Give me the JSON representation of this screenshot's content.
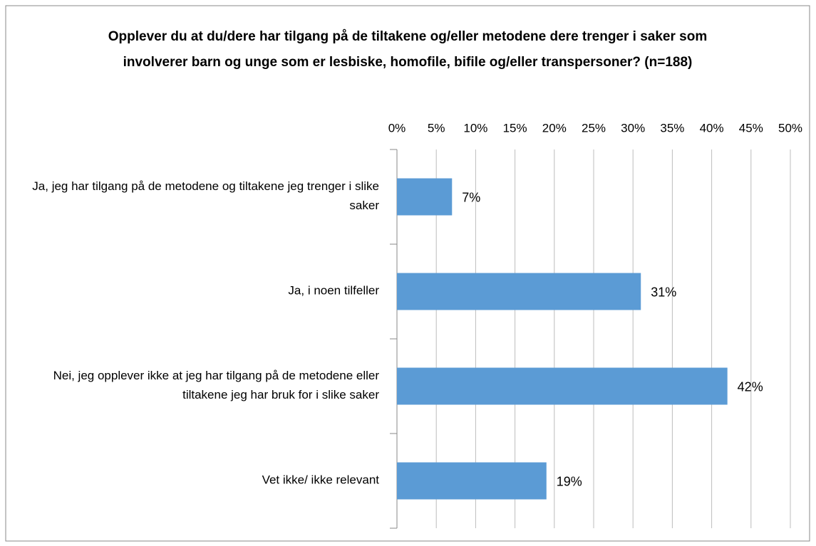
{
  "chart_data": {
    "type": "bar",
    "orientation": "horizontal",
    "title": "Opplever du at du/dere har tilgang på de tiltakene og/eller metodene dere trenger i saker som involverer barn og unge som er lesbiske, homofile, bifile og/eller transpersoner? (n=188)",
    "categories": [
      "Ja, jeg har tilgang på de metodene og tiltakene jeg trenger i slike saker",
      "Ja, i noen tilfeller",
      "Nei, jeg opplever ikke at jeg har tilgang på de metodene eller tiltakene jeg har bruk for i slike saker",
      "Vet ikke/ ikke relevant"
    ],
    "values": [
      7,
      31,
      42,
      19
    ],
    "value_labels": [
      "7%",
      "31%",
      "42%",
      "19%"
    ],
    "color": "#5b9bd5",
    "xlim": [
      0,
      50
    ],
    "xticks": [
      {
        "value": 0,
        "label": "0%"
      },
      {
        "value": 5,
        "label": "5%"
      },
      {
        "value": 10,
        "label": "10%"
      },
      {
        "value": 15,
        "label": "15%"
      },
      {
        "value": 20,
        "label": "20%"
      },
      {
        "value": 25,
        "label": "25%"
      },
      {
        "value": 30,
        "label": "30%"
      },
      {
        "value": 35,
        "label": "35%"
      },
      {
        "value": 40,
        "label": "40%"
      },
      {
        "value": 45,
        "label": "45%"
      },
      {
        "value": 50,
        "label": "50%"
      }
    ],
    "grid": true
  }
}
